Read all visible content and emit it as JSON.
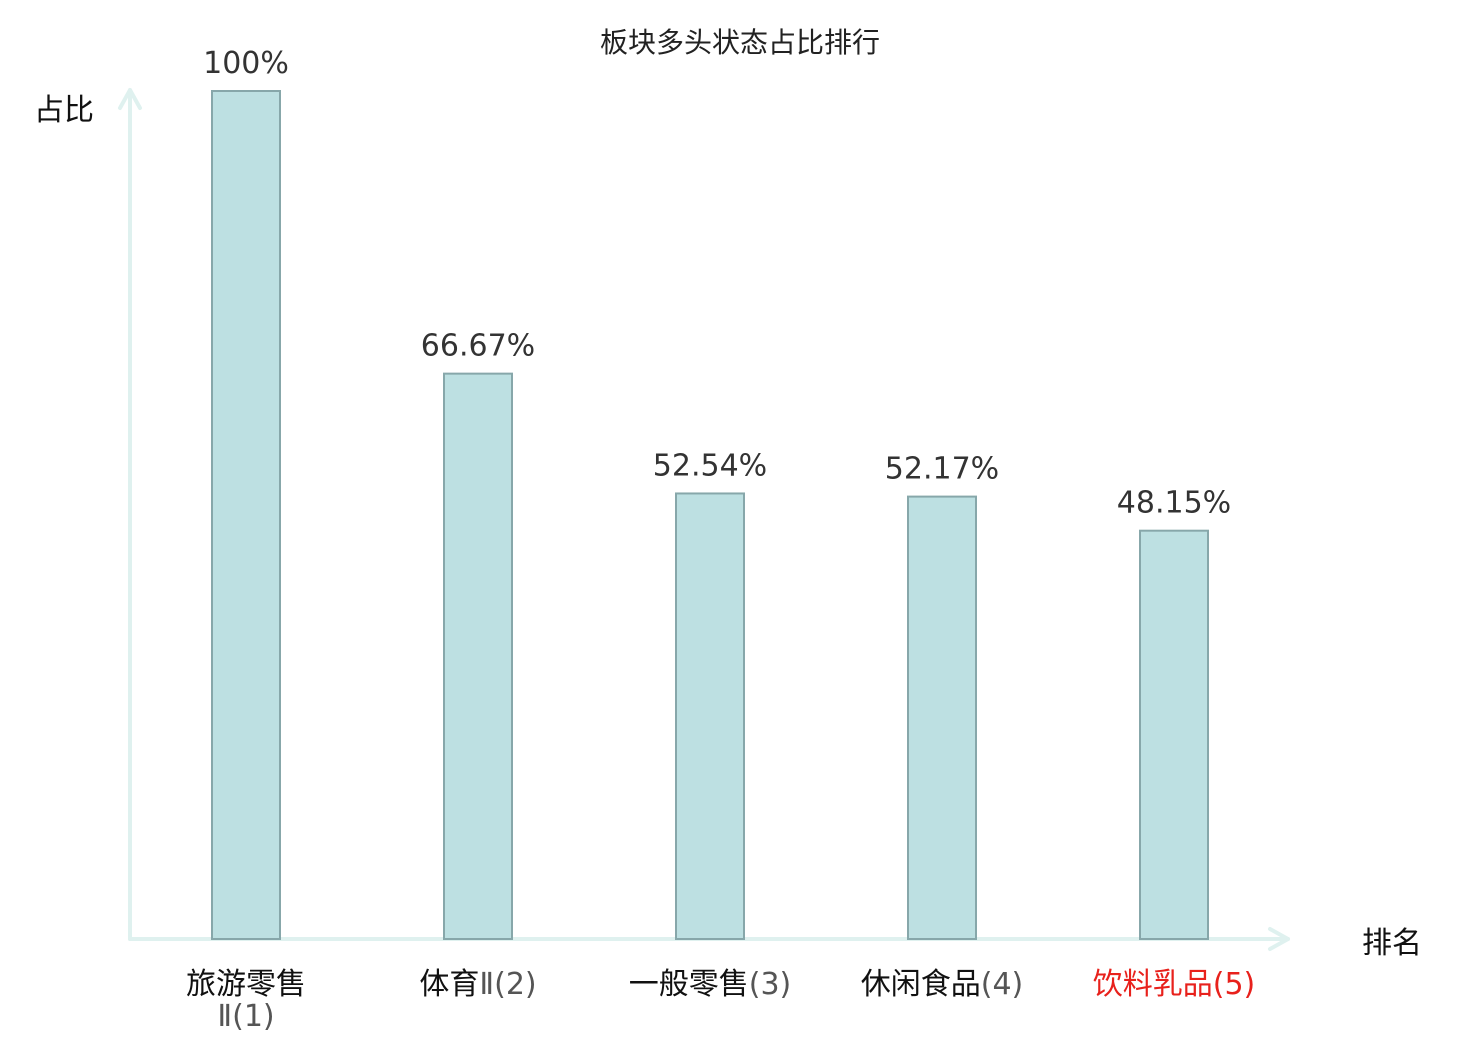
{
  "chart_data": {
    "type": "bar",
    "title": "板块多头状态占比排行",
    "xlabel": "排名",
    "ylabel": "占比",
    "ylim": [
      0,
      100
    ],
    "grid": false,
    "categories": [
      "旅游零售Ⅱ(1)",
      "体育Ⅱ(2)",
      "一般零售(3)",
      "休闲食品(4)",
      "饮料乳品(5)"
    ],
    "category_parts": [
      {
        "name": "旅游零售",
        "rank": "Ⅱ(1)"
      },
      {
        "name": "体育",
        "rank": "Ⅱ(2)"
      },
      {
        "name": "一般零售",
        "rank": "(3)"
      },
      {
        "name": "休闲食品",
        "rank": "(4)"
      },
      {
        "name": "饮料乳品",
        "rank": "(5)"
      }
    ],
    "values": [
      100,
      66.67,
      52.54,
      52.17,
      48.15
    ],
    "value_labels": [
      "100%",
      "66.67%",
      "52.54%",
      "52.17%",
      "48.15%"
    ],
    "highlight_index": 4,
    "colors": {
      "bar_fill": "#bde0e2",
      "bar_stroke": "#87a7aa",
      "axis": "#dff1ef",
      "highlight": "#e8211c"
    }
  }
}
